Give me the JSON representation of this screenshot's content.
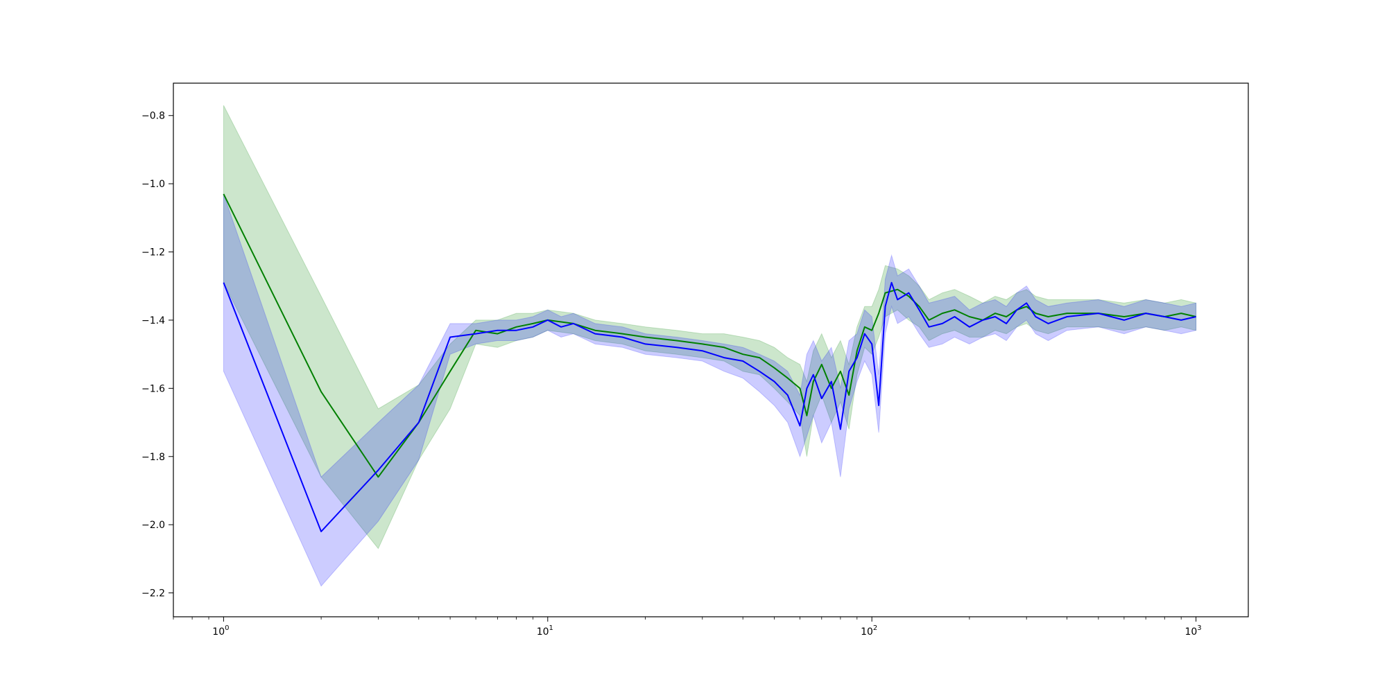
{
  "chart_data": {
    "type": "line",
    "xscale": "log",
    "xlim": [
      0.7,
      1450
    ],
    "ylim": [
      -2.27,
      -0.705
    ],
    "x_ticks": [
      {
        "value": 1,
        "base": "10",
        "exp": "0"
      },
      {
        "value": 10,
        "base": "10",
        "exp": "1"
      },
      {
        "value": 100,
        "base": "10",
        "exp": "2"
      },
      {
        "value": 1000,
        "base": "10",
        "exp": "3"
      }
    ],
    "y_ticks": [
      {
        "value": -0.8,
        "label": "−0.8"
      },
      {
        "value": -1.0,
        "label": "−1.0"
      },
      {
        "value": -1.2,
        "label": "−1.2"
      },
      {
        "value": -1.4,
        "label": "−1.4"
      },
      {
        "value": -1.6,
        "label": "−1.6"
      },
      {
        "value": -1.8,
        "label": "−1.8"
      },
      {
        "value": -2.0,
        "label": "−2.0"
      },
      {
        "value": -2.2,
        "label": "−2.2"
      }
    ],
    "grid": false,
    "legend": "none",
    "series": [
      {
        "color": "#008000",
        "band_color": "#008000",
        "band_opacity": 0.2,
        "x": [
          1,
          2,
          3,
          4,
          5,
          6,
          7,
          8,
          9,
          10,
          12,
          14,
          17,
          20,
          25,
          30,
          35,
          40,
          45,
          50,
          55,
          60,
          63,
          66,
          70,
          75,
          80,
          85,
          90,
          95,
          100,
          105,
          110,
          120,
          130,
          140,
          150,
          165,
          180,
          200,
          220,
          240,
          260,
          280,
          300,
          320,
          350,
          400,
          500,
          600,
          700,
          800,
          900,
          1000
        ],
        "y": [
          -1.03,
          -1.61,
          -1.86,
          -1.7,
          -1.55,
          -1.43,
          -1.44,
          -1.42,
          -1.41,
          -1.4,
          -1.41,
          -1.43,
          -1.44,
          -1.45,
          -1.46,
          -1.47,
          -1.48,
          -1.5,
          -1.51,
          -1.54,
          -1.57,
          -1.6,
          -1.68,
          -1.58,
          -1.53,
          -1.6,
          -1.55,
          -1.62,
          -1.49,
          -1.42,
          -1.43,
          -1.38,
          -1.32,
          -1.31,
          -1.33,
          -1.36,
          -1.4,
          -1.38,
          -1.37,
          -1.39,
          -1.4,
          -1.38,
          -1.39,
          -1.37,
          -1.36,
          -1.38,
          -1.39,
          -1.38,
          -1.38,
          -1.39,
          -1.38,
          -1.39,
          -1.38,
          -1.39
        ],
        "lower": [
          -1.29,
          -1.86,
          -2.07,
          -1.81,
          -1.66,
          -1.47,
          -1.48,
          -1.46,
          -1.45,
          -1.43,
          -1.44,
          -1.46,
          -1.47,
          -1.49,
          -1.5,
          -1.51,
          -1.52,
          -1.55,
          -1.56,
          -1.6,
          -1.64,
          -1.68,
          -1.8,
          -1.68,
          -1.62,
          -1.7,
          -1.64,
          -1.72,
          -1.56,
          -1.48,
          -1.5,
          -1.45,
          -1.39,
          -1.37,
          -1.4,
          -1.42,
          -1.46,
          -1.44,
          -1.43,
          -1.45,
          -1.45,
          -1.43,
          -1.44,
          -1.42,
          -1.41,
          -1.43,
          -1.44,
          -1.42,
          -1.42,
          -1.43,
          -1.42,
          -1.43,
          -1.42,
          -1.43
        ],
        "upper": [
          -0.77,
          -1.33,
          -1.66,
          -1.59,
          -1.47,
          -1.4,
          -1.4,
          -1.38,
          -1.38,
          -1.37,
          -1.38,
          -1.4,
          -1.41,
          -1.42,
          -1.43,
          -1.44,
          -1.44,
          -1.45,
          -1.46,
          -1.48,
          -1.51,
          -1.53,
          -1.58,
          -1.49,
          -1.44,
          -1.51,
          -1.46,
          -1.53,
          -1.42,
          -1.36,
          -1.36,
          -1.31,
          -1.24,
          -1.25,
          -1.27,
          -1.3,
          -1.34,
          -1.32,
          -1.31,
          -1.33,
          -1.35,
          -1.33,
          -1.34,
          -1.32,
          -1.31,
          -1.33,
          -1.34,
          -1.34,
          -1.34,
          -1.35,
          -1.34,
          -1.35,
          -1.34,
          -1.35
        ]
      },
      {
        "color": "#0000ff",
        "band_color": "#0000ff",
        "band_opacity": 0.2,
        "x": [
          1,
          2,
          3,
          4,
          5,
          6,
          7,
          8,
          9,
          10,
          11,
          12,
          14,
          17,
          20,
          25,
          30,
          35,
          40,
          45,
          50,
          55,
          60,
          63,
          66,
          70,
          75,
          80,
          85,
          90,
          95,
          100,
          105,
          110,
          115,
          120,
          130,
          140,
          150,
          165,
          180,
          200,
          220,
          240,
          260,
          280,
          300,
          320,
          350,
          400,
          500,
          600,
          700,
          800,
          900,
          1000
        ],
        "y": [
          -1.29,
          -2.02,
          -1.84,
          -1.7,
          -1.45,
          -1.44,
          -1.43,
          -1.43,
          -1.42,
          -1.4,
          -1.42,
          -1.41,
          -1.44,
          -1.45,
          -1.47,
          -1.48,
          -1.49,
          -1.51,
          -1.52,
          -1.55,
          -1.58,
          -1.62,
          -1.71,
          -1.6,
          -1.56,
          -1.63,
          -1.58,
          -1.72,
          -1.55,
          -1.51,
          -1.44,
          -1.47,
          -1.65,
          -1.36,
          -1.29,
          -1.34,
          -1.32,
          -1.37,
          -1.42,
          -1.41,
          -1.39,
          -1.42,
          -1.4,
          -1.39,
          -1.41,
          -1.37,
          -1.35,
          -1.39,
          -1.41,
          -1.39,
          -1.38,
          -1.4,
          -1.38,
          -1.39,
          -1.4,
          -1.39
        ],
        "lower": [
          -1.55,
          -2.18,
          -1.99,
          -1.81,
          -1.5,
          -1.47,
          -1.46,
          -1.46,
          -1.45,
          -1.43,
          -1.45,
          -1.44,
          -1.47,
          -1.48,
          -1.5,
          -1.51,
          -1.52,
          -1.55,
          -1.57,
          -1.61,
          -1.65,
          -1.7,
          -1.8,
          -1.74,
          -1.68,
          -1.76,
          -1.7,
          -1.86,
          -1.66,
          -1.58,
          -1.52,
          -1.56,
          -1.73,
          -1.44,
          -1.36,
          -1.41,
          -1.39,
          -1.44,
          -1.48,
          -1.47,
          -1.45,
          -1.47,
          -1.45,
          -1.44,
          -1.46,
          -1.42,
          -1.4,
          -1.44,
          -1.46,
          -1.43,
          -1.42,
          -1.44,
          -1.42,
          -1.43,
          -1.44,
          -1.43
        ],
        "upper": [
          -1.03,
          -1.86,
          -1.7,
          -1.59,
          -1.41,
          -1.41,
          -1.4,
          -1.4,
          -1.39,
          -1.37,
          -1.39,
          -1.38,
          -1.41,
          -1.42,
          -1.44,
          -1.45,
          -1.46,
          -1.47,
          -1.48,
          -1.5,
          -1.52,
          -1.55,
          -1.62,
          -1.5,
          -1.46,
          -1.52,
          -1.48,
          -1.6,
          -1.46,
          -1.44,
          -1.37,
          -1.39,
          -1.56,
          -1.28,
          -1.21,
          -1.27,
          -1.25,
          -1.3,
          -1.35,
          -1.34,
          -1.33,
          -1.37,
          -1.35,
          -1.34,
          -1.36,
          -1.32,
          -1.3,
          -1.34,
          -1.36,
          -1.35,
          -1.34,
          -1.36,
          -1.34,
          -1.35,
          -1.36,
          -1.35
        ]
      }
    ]
  }
}
